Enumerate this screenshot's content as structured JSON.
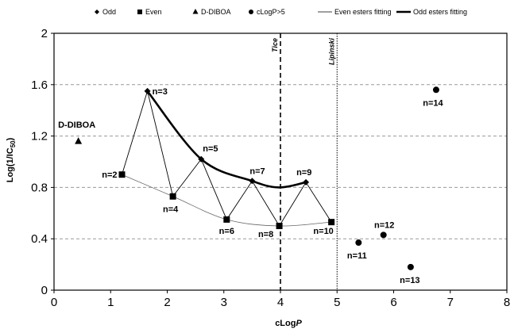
{
  "chart_data": {
    "type": "scatter",
    "xlabel": "cLog",
    "xlabel_italic": "P",
    "ylabel": "Log(1/IC",
    "ylabel_sub": "50",
    "ylabel_end": ")",
    "xlim": [
      0,
      8
    ],
    "ylim": [
      0,
      2
    ],
    "xticks": [
      "0",
      "1",
      "2",
      "3",
      "4",
      "5",
      "6",
      "7",
      "8"
    ],
    "yticks": [
      "0",
      "0.4",
      "0.8",
      "1.2",
      "1.6",
      "2"
    ],
    "grid": "horizontal dashed",
    "legend_position": "top",
    "legend": [
      {
        "label": "Odd",
        "marker": "diamond"
      },
      {
        "label": "Even",
        "marker": "square"
      },
      {
        "label": "D-DIBOA",
        "marker": "triangle"
      },
      {
        "label": "cLogP>5",
        "marker": "circle"
      },
      {
        "label": "Even esters fitting",
        "marker": "thin-line"
      },
      {
        "label": "Odd esters fitting",
        "marker": "thick-line"
      }
    ],
    "series": [
      {
        "name": "Odd",
        "marker": "diamond",
        "points": [
          {
            "x": 1.65,
            "y": 1.55,
            "label": "n=3"
          },
          {
            "x": 2.6,
            "y": 1.02,
            "label": "n=5"
          },
          {
            "x": 3.5,
            "y": 0.85,
            "label": "n=7"
          },
          {
            "x": 4.45,
            "y": 0.84,
            "label": "n=9"
          }
        ]
      },
      {
        "name": "Even",
        "marker": "square",
        "points": [
          {
            "x": 1.2,
            "y": 0.9,
            "label": "n=2"
          },
          {
            "x": 2.1,
            "y": 0.73,
            "label": "n=4"
          },
          {
            "x": 3.05,
            "y": 0.55,
            "label": "n=6"
          },
          {
            "x": 3.98,
            "y": 0.5,
            "label": "n=8"
          },
          {
            "x": 4.9,
            "y": 0.53,
            "label": "n=10"
          }
        ]
      },
      {
        "name": "D-DIBOA",
        "marker": "triangle",
        "points": [
          {
            "x": 0.43,
            "y": 1.16,
            "label": "D-DIBOA"
          }
        ]
      },
      {
        "name": "cLogP>5",
        "marker": "circle",
        "points": [
          {
            "x": 5.38,
            "y": 0.37,
            "label": "n=11"
          },
          {
            "x": 5.82,
            "y": 0.43,
            "label": "n=12"
          },
          {
            "x": 6.3,
            "y": 0.18,
            "label": "n=13"
          },
          {
            "x": 6.75,
            "y": 1.56,
            "label": "n=14"
          }
        ]
      }
    ],
    "zigzag_order": [
      "n=2",
      "n=3",
      "n=4",
      "n=5",
      "n=6",
      "n=7",
      "n=8",
      "n=9",
      "n=10"
    ],
    "fits": [
      {
        "name": "Even esters fitting",
        "style": "thin",
        "points": [
          [
            1.2,
            0.9
          ],
          [
            2.1,
            0.73
          ],
          [
            3.05,
            0.55
          ],
          [
            3.98,
            0.5
          ],
          [
            4.9,
            0.53
          ]
        ]
      },
      {
        "name": "Odd esters fitting",
        "style": "thick",
        "points": [
          [
            1.65,
            1.55
          ],
          [
            2.6,
            1.02
          ],
          [
            3.5,
            0.85
          ],
          [
            3.98,
            0.8
          ],
          [
            4.45,
            0.84
          ]
        ]
      }
    ],
    "vertical_lines": [
      {
        "x": 4.0,
        "label": "Tice",
        "style": "dashed"
      },
      {
        "x": 5.0,
        "label": "Lipinski",
        "style": "dotted"
      }
    ]
  }
}
